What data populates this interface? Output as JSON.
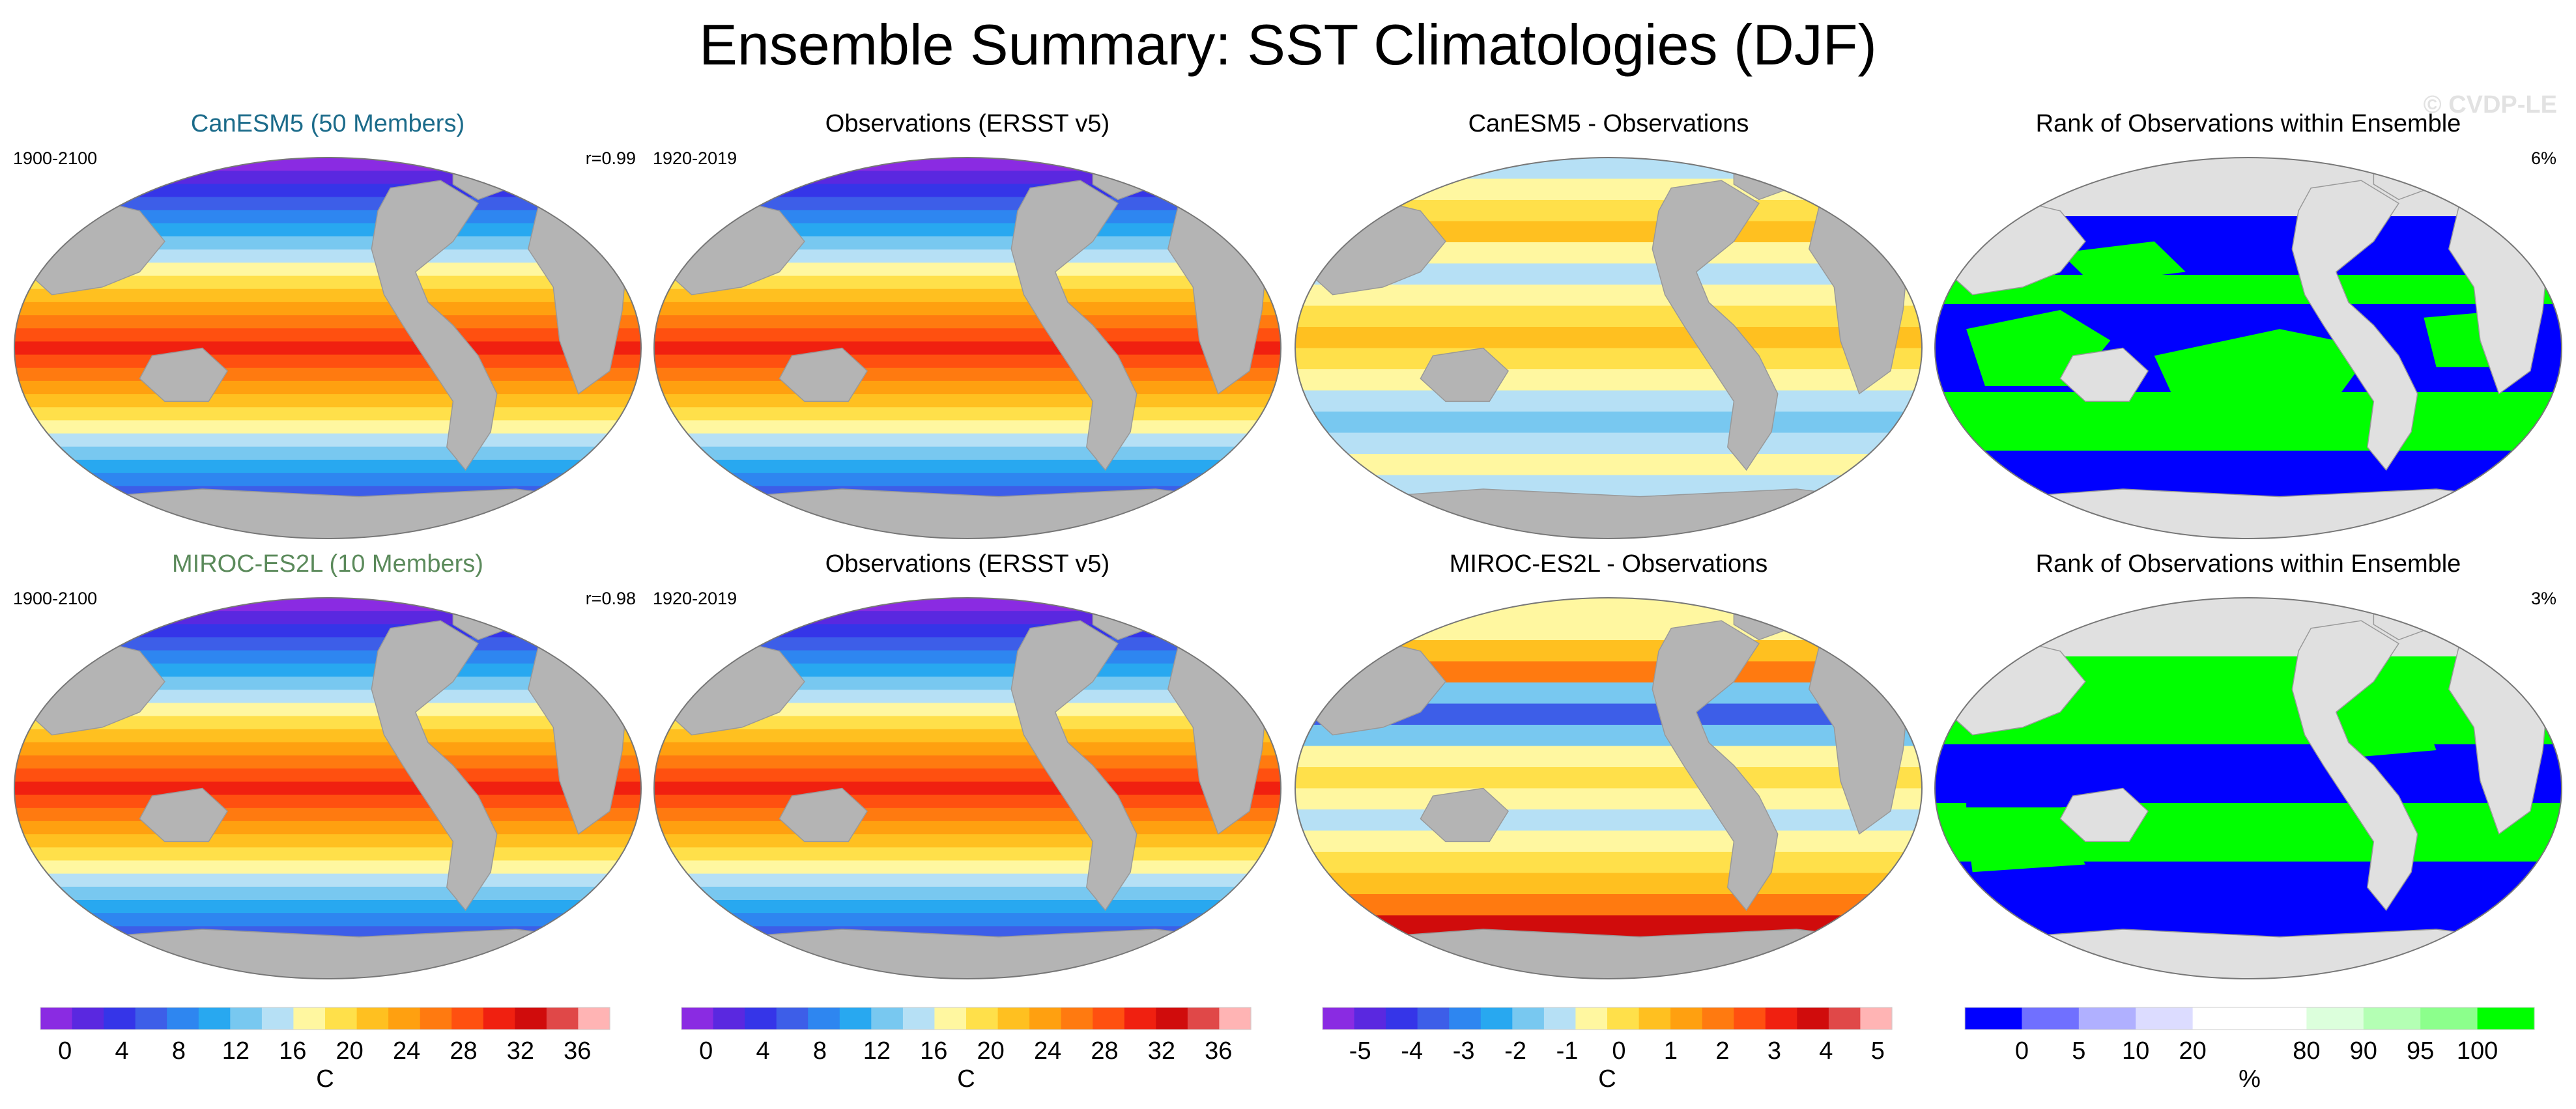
{
  "title": "Ensemble Summary: SST Climatologies (DJF)",
  "watermark": "© CVDP-LE",
  "colors": {
    "land": "#b4b4b4",
    "ocean_text_canesm": "#1b6b8a",
    "ocean_text_miroc": "#5b8a5b"
  },
  "chart_data": [
    {
      "type": "heatmap",
      "map": "robinson",
      "title": "CanESM5 (50 Members)",
      "title_color": "#1b6b8a",
      "period": "1900-2100",
      "stat": "r=0.99",
      "field": "sst"
    },
    {
      "type": "heatmap",
      "map": "robinson",
      "title": "Observations (ERSST v5)",
      "title_color": "#000000",
      "period": "1920-2019",
      "stat": "",
      "field": "sst"
    },
    {
      "type": "heatmap",
      "map": "robinson",
      "title": "CanESM5 - Observations",
      "title_color": "#000000",
      "period": "",
      "stat": "",
      "field": "diff1"
    },
    {
      "type": "heatmap",
      "map": "robinson",
      "title": "Rank of Observations within Ensemble",
      "title_color": "#000000",
      "period": "",
      "stat": "6%",
      "field": "rank1"
    },
    {
      "type": "heatmap",
      "map": "robinson",
      "title": "MIROC-ES2L (10 Members)",
      "title_color": "#5b8a5b",
      "period": "1900-2100",
      "stat": "r=0.98",
      "field": "sst"
    },
    {
      "type": "heatmap",
      "map": "robinson",
      "title": "Observations (ERSST v5)",
      "title_color": "#000000",
      "period": "1920-2019",
      "stat": "",
      "field": "sst"
    },
    {
      "type": "heatmap",
      "map": "robinson",
      "title": "MIROC-ES2L - Observations",
      "title_color": "#000000",
      "period": "",
      "stat": "",
      "field": "diff2"
    },
    {
      "type": "heatmap",
      "map": "robinson",
      "title": "Rank of Observations within Ensemble",
      "title_color": "#000000",
      "period": "",
      "stat": "3%",
      "field": "rank2"
    }
  ],
  "colorbars": [
    {
      "unit": "C",
      "colors": [
        "#8a2be2",
        "#5a28e0",
        "#3535e8",
        "#3d5ee8",
        "#2e86f0",
        "#28a8f0",
        "#78c8f0",
        "#b6e0f5",
        "#fff7a0",
        "#ffe04a",
        "#ffc020",
        "#ffa010",
        "#ff7a10",
        "#ff5010",
        "#f02010",
        "#d00c0c",
        "#e04848",
        "#ffb4b4"
      ],
      "labels": [
        "0",
        "4",
        "8",
        "12",
        "16",
        "20",
        "24",
        "28",
        "32",
        "36"
      ]
    },
    {
      "unit": "C",
      "colors": [
        "#8a2be2",
        "#5a28e0",
        "#3535e8",
        "#3d5ee8",
        "#2e86f0",
        "#28a8f0",
        "#78c8f0",
        "#b6e0f5",
        "#fff7a0",
        "#ffe04a",
        "#ffc020",
        "#ffa010",
        "#ff7a10",
        "#ff5010",
        "#f02010",
        "#d00c0c",
        "#e04848",
        "#ffb4b4"
      ],
      "labels": [
        "0",
        "4",
        "8",
        "12",
        "16",
        "20",
        "24",
        "28",
        "32",
        "36"
      ]
    },
    {
      "unit": "C",
      "colors": [
        "#8a2be2",
        "#5a28e0",
        "#3535e8",
        "#3d5ee8",
        "#2e86f0",
        "#28a8f0",
        "#78c8f0",
        "#b6e0f5",
        "#fff7a0",
        "#ffe04a",
        "#ffc020",
        "#ffa010",
        "#ff7a10",
        "#ff5010",
        "#f02010",
        "#d00c0c",
        "#e04848",
        "#ffb4b4"
      ],
      "labels": [
        "-5",
        "-4",
        "-3",
        "-2",
        "-1",
        "0",
        "1",
        "2",
        "3",
        "4",
        "5"
      ]
    },
    {
      "unit": "%",
      "colors": [
        "#0000ff",
        "#7070ff",
        "#b0b0ff",
        "#dcdcff",
        "#ffffff",
        "#ffffff",
        "#dcffdc",
        "#b4ffb4",
        "#8cff8c",
        "#00ff00"
      ],
      "labels": [
        "0",
        "5",
        "10",
        "20",
        "80",
        "90",
        "95",
        "100"
      ]
    }
  ]
}
